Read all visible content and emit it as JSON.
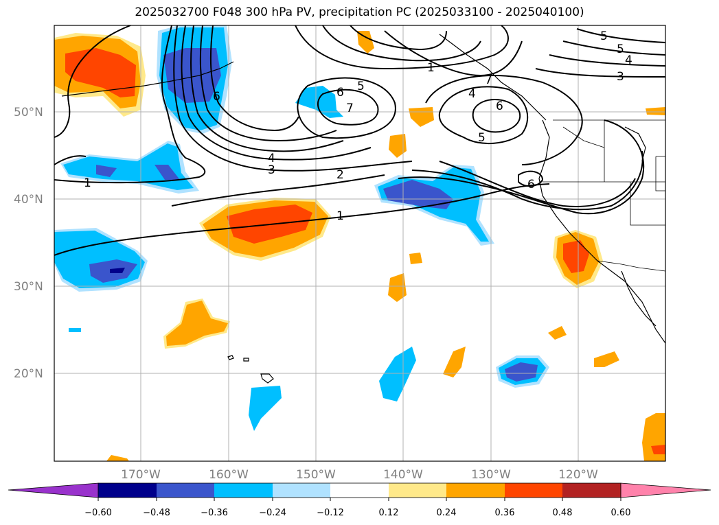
{
  "title": "2025032700 F048 300 hPa PV, precipitation PC (2025033100 - 2025040100)",
  "map": {
    "lat_labels": [
      "50°N",
      "40°N",
      "30°N",
      "20°N"
    ],
    "lon_labels": [
      "170°W",
      "160°W",
      "150°W",
      "140°W",
      "130°W",
      "120°W"
    ],
    "gridlines": true
  },
  "colorbar": {
    "ticks": [
      "−0.60",
      "−0.48",
      "−0.36",
      "−0.24",
      "−0.12",
      "0.12",
      "0.24",
      "0.36",
      "0.48",
      "0.60"
    ],
    "colors": [
      "#9932cc",
      "#00008b",
      "#3a55cc",
      "#00bfff",
      "#b0e2ff",
      "#ffffff",
      "#ffe98a",
      "#ffa500",
      "#ff4500",
      "#b22222",
      "#ff82ab"
    ]
  },
  "pv_contour_labels": [
    "6",
    "5",
    "4",
    "3",
    "1",
    "6",
    "5",
    "7",
    "7",
    "4",
    "6",
    "5",
    "4",
    "3",
    "2",
    "1",
    "1",
    "5",
    "6"
  ]
}
